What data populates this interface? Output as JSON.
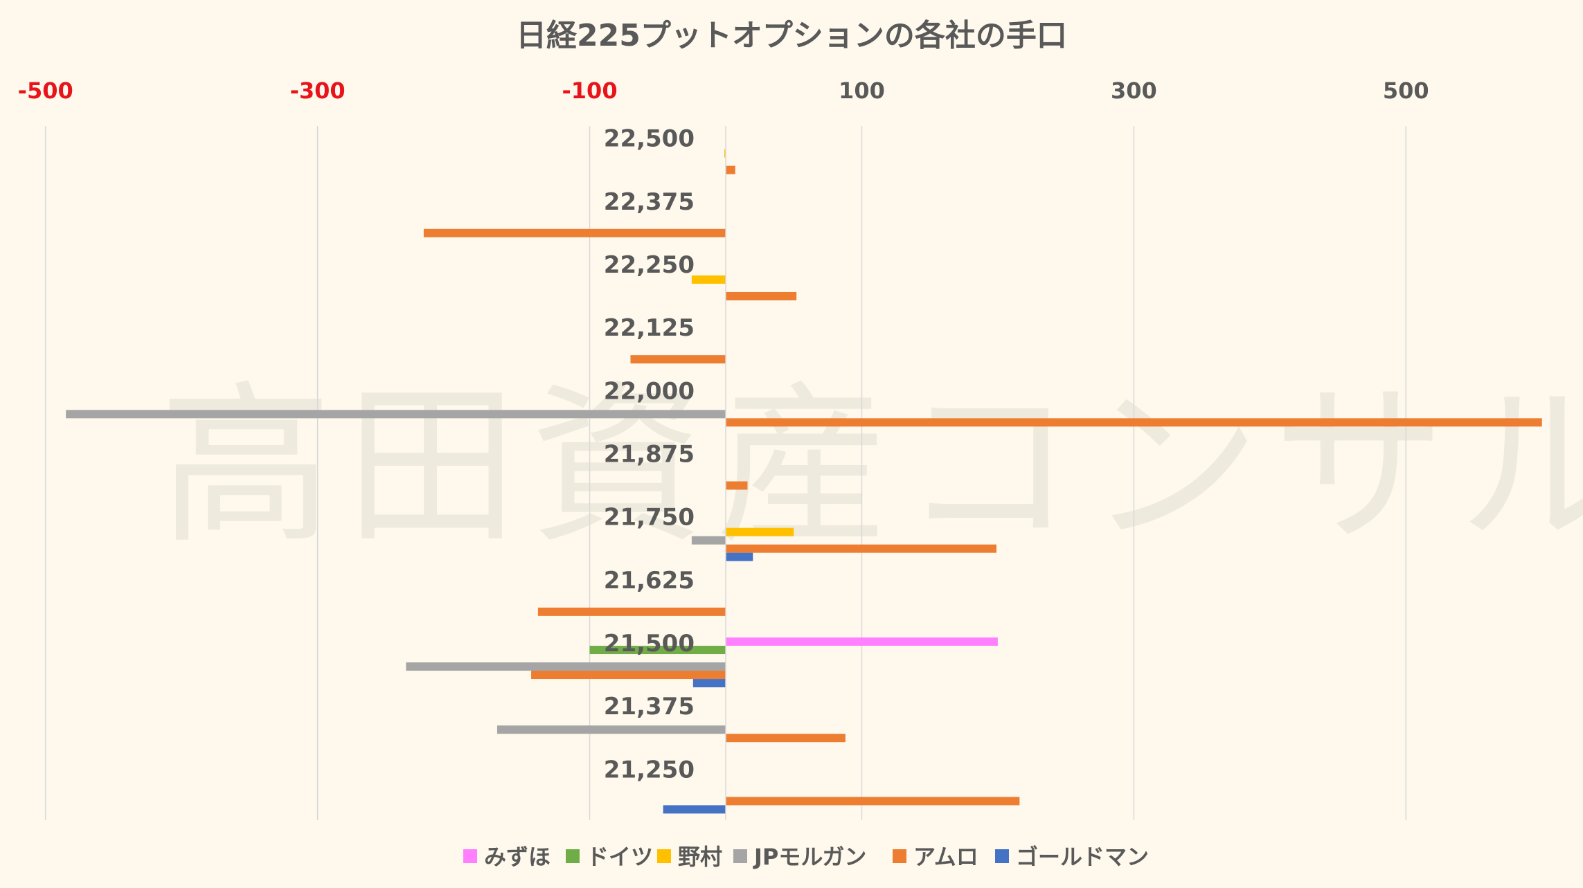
{
  "chart_data": {
    "type": "bar",
    "orientation": "horizontal",
    "title": "日経225プットオプションの各社の手口",
    "watermark": "高田資産コンサル",
    "xlim": [
      -500,
      600
    ],
    "x_ticks": [
      -500,
      -300,
      -100,
      100,
      300,
      500
    ],
    "x_tick_labels": [
      "-500",
      "-300",
      "-100",
      "100",
      "300",
      "500"
    ],
    "x_axis_position": "top",
    "negative_tick_color": "#e8141c",
    "positive_tick_color": "#595959",
    "grid": "vertical",
    "legend_position": "bottom",
    "categories": [
      "22,500",
      "22,375",
      "22,250",
      "22,125",
      "22,000",
      "21,875",
      "21,750",
      "21,625",
      "21,500",
      "21,375",
      "21,250"
    ],
    "series": [
      {
        "name": "みずほ",
        "color": "#ff80ff",
        "values": [
          0,
          0,
          0,
          0,
          0,
          0,
          0,
          0,
          200,
          0,
          0
        ]
      },
      {
        "name": "ドイツ",
        "color": "#70ad47",
        "values": [
          0,
          0,
          0,
          0,
          0,
          0,
          0,
          0,
          -100,
          0,
          0
        ]
      },
      {
        "name": "野村",
        "color": "#ffc000",
        "values": [
          -1,
          0,
          -25,
          0,
          0,
          0,
          50,
          0,
          0,
          0,
          0
        ]
      },
      {
        "name": "JPモルガン",
        "color": "#a5a5a5",
        "values": [
          0,
          0,
          0,
          0,
          -485,
          0,
          -25,
          0,
          -235,
          -168,
          0
        ]
      },
      {
        "name": "アムロ",
        "color": "#ed7d31",
        "values": [
          7,
          -222,
          52,
          -70,
          600,
          16,
          199,
          -138,
          -143,
          88,
          216
        ]
      },
      {
        "name": "ゴールドマン",
        "color": "#4472c4",
        "values": [
          0,
          0,
          0,
          0,
          0,
          0,
          20,
          0,
          -24,
          0,
          -46
        ]
      }
    ]
  }
}
